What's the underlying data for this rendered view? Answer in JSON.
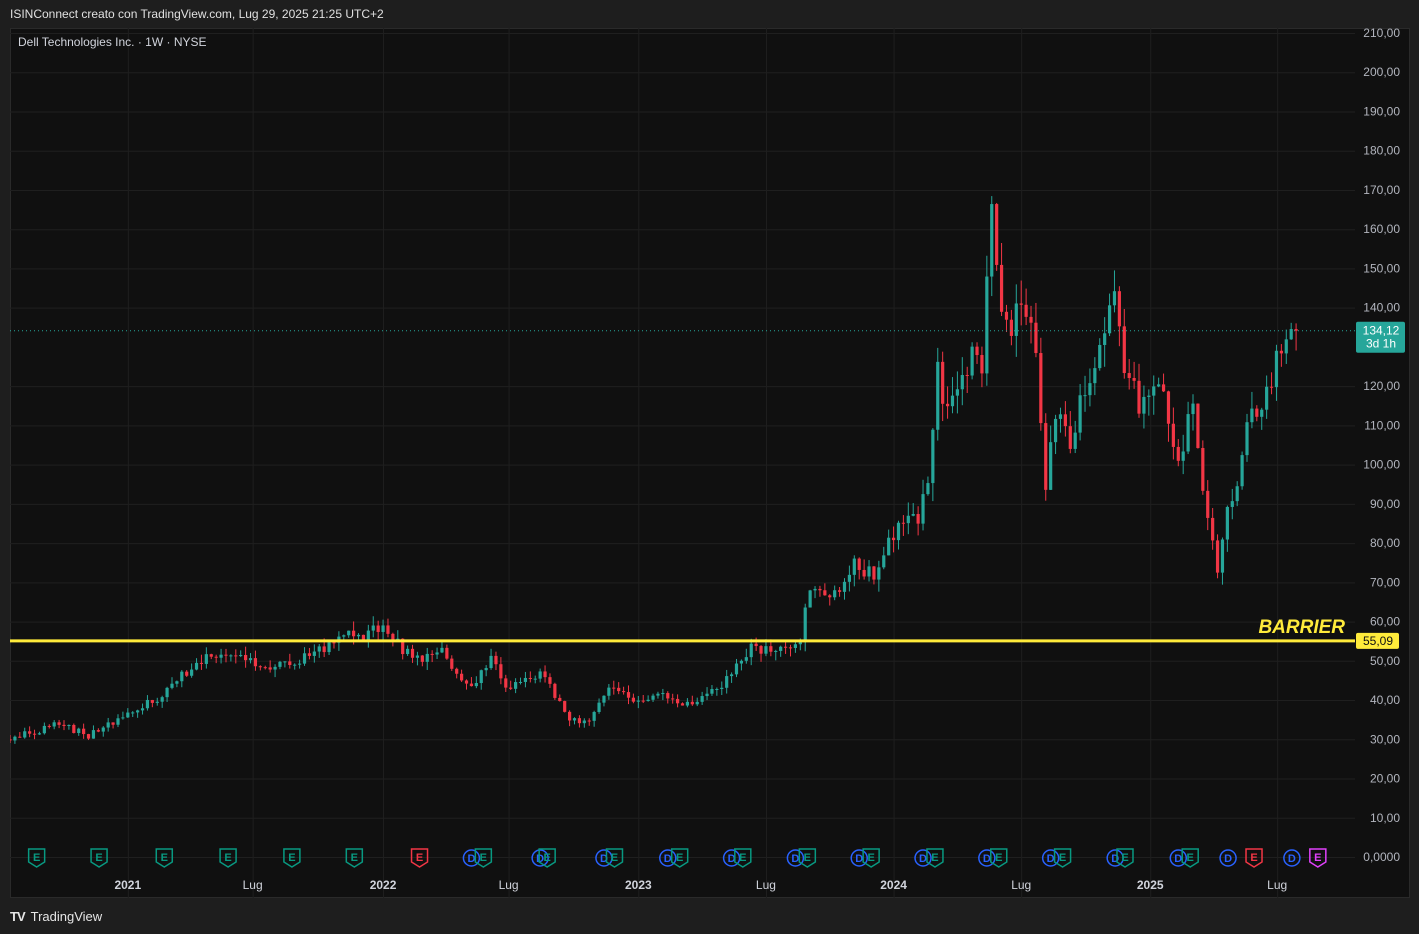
{
  "header": {
    "credit": "ISINConnect creato con TradingView.com, Lug 29, 2025 21:25 UTC+2"
  },
  "footer": {
    "brand": "TradingView",
    "brand_icon": "tradingview-logo-icon"
  },
  "colors": {
    "background": "#101010",
    "up": "#26a69a",
    "down": "#f23645",
    "barrier": "#ffeb3b",
    "dividend": "#2962ff",
    "earnings_up": "#089981",
    "earnings_down": "#f23645",
    "earnings_future": "#e040fb"
  },
  "chart_data": {
    "type": "candlestick",
    "title": "Dell Technologies Inc. · 1W · NYSE",
    "y_ticks": [
      "210,00",
      "200,00",
      "190,00",
      "180,00",
      "170,00",
      "160,00",
      "150,00",
      "140,00",
      "120,00",
      "110,00",
      "100,00",
      "90,00",
      "80,00",
      "70,00",
      "60,00",
      "50,00",
      "40,00",
      "30,00",
      "20,00",
      "10,00",
      "0,0000"
    ],
    "y_tick_values": [
      210,
      200,
      190,
      180,
      170,
      160,
      150,
      140,
      120,
      110,
      100,
      90,
      80,
      70,
      60,
      50,
      40,
      30,
      20,
      10,
      0
    ],
    "ylim": [
      0,
      210
    ],
    "x_ticks": [
      {
        "label": "2021",
        "x": "2021-01-04",
        "bold": true
      },
      {
        "label": "Lug",
        "x": "2021-07-01",
        "bold": false
      },
      {
        "label": "2022",
        "x": "2022-01-03",
        "bold": true
      },
      {
        "label": "Lug",
        "x": "2022-07-01",
        "bold": false
      },
      {
        "label": "2023",
        "x": "2023-01-02",
        "bold": true
      },
      {
        "label": "Lug",
        "x": "2023-07-03",
        "bold": false
      },
      {
        "label": "2024",
        "x": "2024-01-01",
        "bold": true
      },
      {
        "label": "Lug",
        "x": "2024-07-01",
        "bold": false
      },
      {
        "label": "2025",
        "x": "2025-01-01",
        "bold": true
      },
      {
        "label": "Lug",
        "x": "2025-07-01",
        "bold": false
      }
    ],
    "xlim": [
      "2020-07-20",
      "2025-10-20"
    ],
    "grid": true,
    "last_price": {
      "value": 134.12,
      "label": "134,12",
      "countdown": "3d 1h"
    },
    "barrier": {
      "value": 55.09,
      "label": "55,09",
      "text": "BARRIER"
    },
    "key_points": [
      {
        "x": "2020-07-20",
        "y": 30
      },
      {
        "x": "2020-09-28",
        "y": 34
      },
      {
        "x": "2020-11-09",
        "y": 31
      },
      {
        "x": "2021-01-11",
        "y": 37
      },
      {
        "x": "2021-03-01",
        "y": 42
      },
      {
        "x": "2021-04-12",
        "y": 50
      },
      {
        "x": "2021-06-07",
        "y": 52
      },
      {
        "x": "2021-07-19",
        "y": 48
      },
      {
        "x": "2021-08-30",
        "y": 50
      },
      {
        "x": "2021-10-11",
        "y": 53
      },
      {
        "x": "2021-11-08",
        "y": 57
      },
      {
        "x": "2021-12-06",
        "y": 56
      },
      {
        "x": "2022-01-03",
        "y": 59
      },
      {
        "x": "2022-01-31",
        "y": 53
      },
      {
        "x": "2022-02-28",
        "y": 50
      },
      {
        "x": "2022-03-28",
        "y": 52
      },
      {
        "x": "2022-05-09",
        "y": 43
      },
      {
        "x": "2022-06-06",
        "y": 51
      },
      {
        "x": "2022-06-27",
        "y": 43
      },
      {
        "x": "2022-08-15",
        "y": 47
      },
      {
        "x": "2022-09-26",
        "y": 35
      },
      {
        "x": "2022-10-24",
        "y": 34
      },
      {
        "x": "2022-11-21",
        "y": 43
      },
      {
        "x": "2022-12-26",
        "y": 40
      },
      {
        "x": "2023-02-06",
        "y": 42
      },
      {
        "x": "2023-03-20",
        "y": 38
      },
      {
        "x": "2023-05-01",
        "y": 44
      },
      {
        "x": "2023-06-12",
        "y": 53
      },
      {
        "x": "2023-07-24",
        "y": 53
      },
      {
        "x": "2023-08-21",
        "y": 56
      },
      {
        "x": "2023-09-04",
        "y": 68
      },
      {
        "x": "2023-10-16",
        "y": 66
      },
      {
        "x": "2023-11-06",
        "y": 74
      },
      {
        "x": "2023-12-04",
        "y": 72
      },
      {
        "x": "2024-01-08",
        "y": 85
      },
      {
        "x": "2024-02-05",
        "y": 87
      },
      {
        "x": "2024-02-19",
        "y": 96
      },
      {
        "x": "2024-03-04",
        "y": 124
      },
      {
        "x": "2024-03-18",
        "y": 112
      },
      {
        "x": "2024-04-08",
        "y": 120
      },
      {
        "x": "2024-04-22",
        "y": 132
      },
      {
        "x": "2024-05-06",
        "y": 123
      },
      {
        "x": "2024-05-20",
        "y": 167
      },
      {
        "x": "2024-06-03",
        "y": 140
      },
      {
        "x": "2024-06-17",
        "y": 135
      },
      {
        "x": "2024-07-01",
        "y": 142
      },
      {
        "x": "2024-07-22",
        "y": 128
      },
      {
        "x": "2024-08-05",
        "y": 96
      },
      {
        "x": "2024-08-19",
        "y": 112
      },
      {
        "x": "2024-09-09",
        "y": 106
      },
      {
        "x": "2024-09-30",
        "y": 120
      },
      {
        "x": "2024-10-21",
        "y": 130
      },
      {
        "x": "2024-11-11",
        "y": 145
      },
      {
        "x": "2024-11-25",
        "y": 125
      },
      {
        "x": "2024-12-16",
        "y": 115
      },
      {
        "x": "2025-01-20",
        "y": 118
      },
      {
        "x": "2025-02-10",
        "y": 100
      },
      {
        "x": "2025-03-03",
        "y": 115
      },
      {
        "x": "2025-03-17",
        "y": 92
      },
      {
        "x": "2025-04-07",
        "y": 72
      },
      {
        "x": "2025-04-21",
        "y": 88
      },
      {
        "x": "2025-05-05",
        "y": 92
      },
      {
        "x": "2025-05-19",
        "y": 112
      },
      {
        "x": "2025-06-09",
        "y": 112
      },
      {
        "x": "2025-06-30",
        "y": 126
      },
      {
        "x": "2025-07-21",
        "y": 133
      },
      {
        "x": "2025-07-28",
        "y": 134.12
      }
    ],
    "events": [
      {
        "type": "E",
        "x": "2020-08-27"
      },
      {
        "type": "E",
        "x": "2020-11-24"
      },
      {
        "type": "E",
        "x": "2021-02-25"
      },
      {
        "type": "E",
        "x": "2021-05-27"
      },
      {
        "type": "E",
        "x": "2021-08-26"
      },
      {
        "type": "E",
        "x": "2021-11-23"
      },
      {
        "type": "E-neg",
        "x": "2022-02-24"
      },
      {
        "type": "D",
        "x": "2022-05-09"
      },
      {
        "type": "E",
        "x": "2022-05-26"
      },
      {
        "type": "D",
        "x": "2022-08-15"
      },
      {
        "type": "E",
        "x": "2022-08-25"
      },
      {
        "type": "D",
        "x": "2022-11-14"
      },
      {
        "type": "E",
        "x": "2022-11-29"
      },
      {
        "type": "D",
        "x": "2023-02-13"
      },
      {
        "type": "E",
        "x": "2023-03-02"
      },
      {
        "type": "D",
        "x": "2023-05-15"
      },
      {
        "type": "E",
        "x": "2023-05-31"
      },
      {
        "type": "D",
        "x": "2023-08-14"
      },
      {
        "type": "E",
        "x": "2023-08-31"
      },
      {
        "type": "D",
        "x": "2023-11-13"
      },
      {
        "type": "E",
        "x": "2023-11-30"
      },
      {
        "type": "D",
        "x": "2024-02-12"
      },
      {
        "type": "E",
        "x": "2024-02-29"
      },
      {
        "type": "D",
        "x": "2024-05-13"
      },
      {
        "type": "E",
        "x": "2024-05-30"
      },
      {
        "type": "D",
        "x": "2024-08-12"
      },
      {
        "type": "E",
        "x": "2024-08-29"
      },
      {
        "type": "D",
        "x": "2024-11-12"
      },
      {
        "type": "E",
        "x": "2024-11-26"
      },
      {
        "type": "D",
        "x": "2025-02-10"
      },
      {
        "type": "E",
        "x": "2025-02-27"
      },
      {
        "type": "D",
        "x": "2025-04-22"
      },
      {
        "type": "E-neg",
        "x": "2025-05-29"
      },
      {
        "type": "D",
        "x": "2025-07-22"
      },
      {
        "type": "E-future",
        "x": "2025-08-28"
      }
    ]
  }
}
